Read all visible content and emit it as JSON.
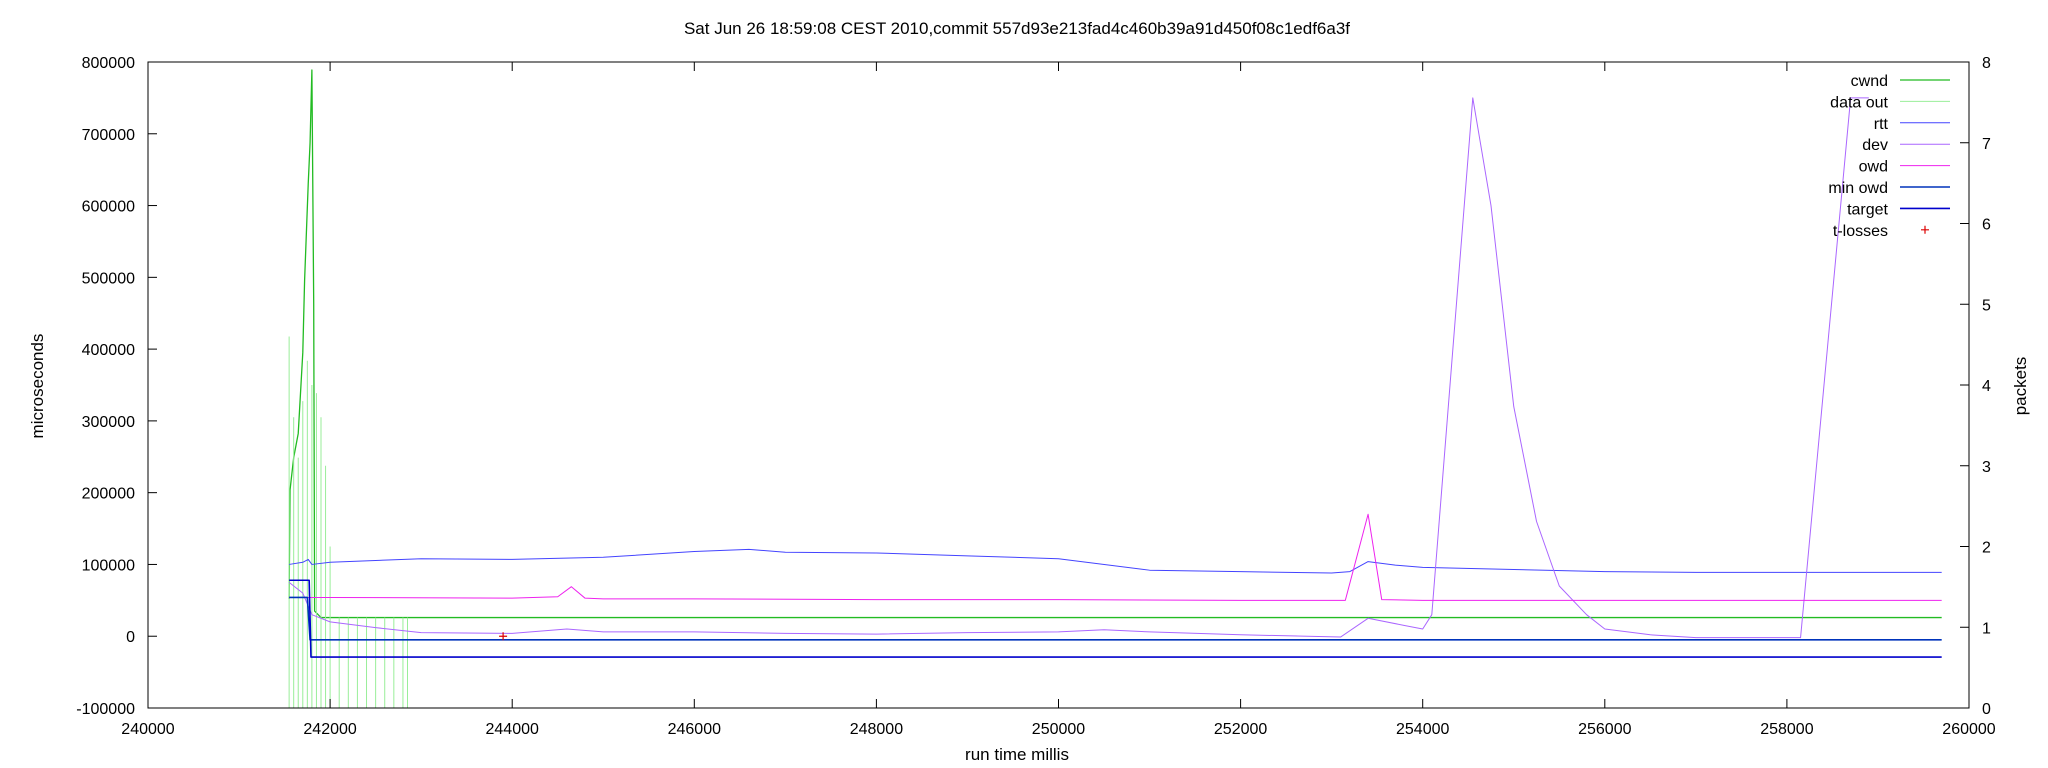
{
  "chart_data": {
    "type": "line",
    "title": "Sat Jun 26 18:59:08 CEST 2010,commit 557d93e213fad4c460b39a91d450f08c1edf6a3f",
    "xlabel": "run time millis",
    "ylabel": "microseconds",
    "y2label": "packets",
    "xlim": [
      240000,
      260000
    ],
    "ylim": [
      -100000,
      800000
    ],
    "y2lim": [
      0,
      8
    ],
    "x_ticks": [
      "240000",
      "242000",
      "244000",
      "246000",
      "248000",
      "250000",
      "252000",
      "254000",
      "256000",
      "258000",
      "260000"
    ],
    "y_ticks": [
      "-100000",
      "0",
      "100000",
      "200000",
      "300000",
      "400000",
      "500000",
      "600000",
      "700000",
      "800000"
    ],
    "y2_ticks": [
      "0",
      "1",
      "2",
      "3",
      "4",
      "5",
      "6",
      "7",
      "8"
    ],
    "grid": false,
    "legend_position": "top-right",
    "series": [
      {
        "name": "cwnd",
        "axis": "y2",
        "color": "#22bb22",
        "width": 1.3,
        "x": [
          241550,
          241560,
          241600,
          241650,
          241700,
          241720,
          241760,
          241780,
          241800,
          241820,
          241830,
          241900,
          242000,
          242200,
          244000,
          246000,
          248000,
          250000,
          252000,
          254000,
          256000,
          258000,
          259700
        ],
        "y": [
          1.35,
          2.7,
          3.1,
          3.4,
          4.4,
          5.3,
          6.5,
          7.0,
          7.9,
          5.0,
          1.2,
          1.12,
          1.12,
          1.12,
          1.12,
          1.12,
          1.12,
          1.12,
          1.12,
          1.12,
          1.12,
          1.12,
          1.12
        ]
      },
      {
        "name": "data out",
        "axis": "y2",
        "style": "impulses",
        "color": "#99ee99",
        "width": 1,
        "x": [
          241550,
          241600,
          241650,
          241700,
          241750,
          241800,
          241850,
          241900,
          241950,
          242000,
          242100,
          242200,
          242300,
          242400,
          242500,
          242600,
          242700,
          242800,
          242850
        ],
        "y": [
          4.6,
          3.6,
          3.1,
          3.8,
          4.3,
          4.0,
          3.9,
          3.6,
          3.0,
          2.0,
          1.12,
          1.12,
          1.12,
          1.12,
          1.12,
          1.12,
          1.12,
          1.12,
          1.12
        ]
      },
      {
        "name": "rtt",
        "axis": "y",
        "color": "#4444ff",
        "width": 1,
        "x": [
          241550,
          241700,
          241760,
          241800,
          242000,
          243000,
          244000,
          245000,
          246000,
          246600,
          247000,
          248000,
          249000,
          250000,
          251000,
          252000,
          253000,
          253200,
          253400,
          253700,
          254000,
          255000,
          256000,
          257000,
          258000,
          259000,
          259700
        ],
        "y": [
          100000,
          103000,
          107000,
          100000,
          103000,
          108000,
          107000,
          110000,
          118000,
          121000,
          117000,
          116000,
          112000,
          108000,
          92000,
          90000,
          88000,
          90000,
          104000,
          99000,
          96000,
          93000,
          90000,
          89000,
          89000,
          89000,
          89000
        ]
      },
      {
        "name": "dev",
        "axis": "y",
        "color": "#aa66ff",
        "width": 1,
        "x": [
          241550,
          241700,
          241800,
          242000,
          242500,
          243000,
          244000,
          244600,
          245000,
          246000,
          247000,
          248000,
          249000,
          250000,
          250500,
          251000,
          252000,
          253100,
          253400,
          253800,
          254000,
          254100,
          254550,
          254750,
          255000,
          255250,
          255500,
          255800,
          256000,
          256500,
          257000,
          258000,
          258150,
          258700,
          258900
        ],
        "y": [
          75000,
          60000,
          30000,
          20000,
          12000,
          5000,
          4000,
          10000,
          6000,
          6000,
          4000,
          3000,
          5000,
          6000,
          9000,
          6000,
          2000,
          -1000,
          25000,
          15000,
          10000,
          30000,
          750000,
          600000,
          320000,
          160000,
          70000,
          30000,
          10000,
          2000,
          -2000,
          -2000,
          -2000,
          750000,
          750000
        ]
      },
      {
        "name": "owd",
        "axis": "y",
        "color": "#ee22ee",
        "width": 1,
        "x": [
          241550,
          242000,
          244000,
          244500,
          244650,
          244800,
          245000,
          246000,
          248000,
          250000,
          252000,
          253150,
          253400,
          253550,
          254000,
          256000,
          258000,
          259700
        ],
        "y": [
          54000,
          54000,
          53000,
          55000,
          69000,
          53000,
          52000,
          52000,
          51000,
          51000,
          50000,
          50000,
          170000,
          51000,
          50000,
          50000,
          50000,
          50000
        ]
      },
      {
        "name": "min owd",
        "axis": "y",
        "color": "#0033bb",
        "width": 1.6,
        "x": [
          241550,
          241750,
          241780,
          259700
        ],
        "y": [
          54000,
          54000,
          -5000,
          -5000
        ]
      },
      {
        "name": "target",
        "axis": "y",
        "color": "#0000cc",
        "width": 1.6,
        "x": [
          241550,
          241770,
          241790,
          259700
        ],
        "y": [
          78000,
          78000,
          -29000,
          -29000
        ]
      },
      {
        "name": "t-losses",
        "axis": "y",
        "style": "points",
        "color": "#dd0000",
        "x": [
          243900
        ],
        "y": [
          0
        ]
      }
    ]
  }
}
